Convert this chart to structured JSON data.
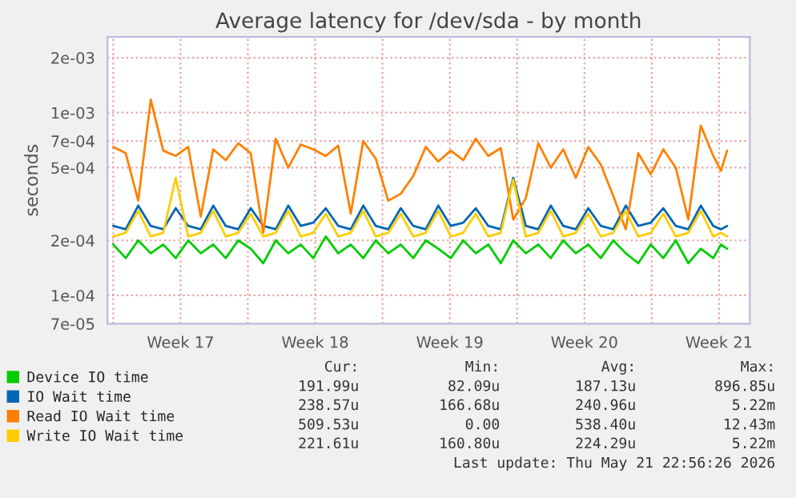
{
  "chart_data": {
    "type": "line",
    "title": "Average latency for /dev/sda - by month",
    "ylabel": "seconds",
    "x": [
      "2026-04-20T00:00",
      "2026-04-20T15:36",
      "2026-04-21T07:12",
      "2026-04-21T22:48",
      "2026-04-22T14:24",
      "2026-04-23T06:00",
      "2026-04-23T21:36",
      "2026-04-24T13:12",
      "2026-04-25T04:48",
      "2026-04-25T20:24",
      "2026-04-26T12:00",
      "2026-04-27T03:36",
      "2026-04-27T19:12",
      "2026-04-28T10:48",
      "2026-04-29T02:24",
      "2026-04-29T18:00",
      "2026-04-30T09:36",
      "2026-05-01T01:12",
      "2026-05-01T16:48",
      "2026-05-02T08:24",
      "2026-05-03T00:00",
      "2026-05-03T15:36",
      "2026-05-04T07:12",
      "2026-05-04T22:48",
      "2026-05-05T14:24",
      "2026-05-06T06:00",
      "2026-05-06T21:36",
      "2026-05-07T13:12",
      "2026-05-08T04:48",
      "2026-05-08T20:24",
      "2026-05-09T12:00",
      "2026-05-10T03:36",
      "2026-05-10T19:12",
      "2026-05-11T10:48",
      "2026-05-12T02:24",
      "2026-05-12T18:00",
      "2026-05-13T09:36",
      "2026-05-14T01:12",
      "2026-05-14T16:48",
      "2026-05-15T08:24",
      "2026-05-16T00:00",
      "2026-05-16T15:36",
      "2026-05-17T07:12",
      "2026-05-17T22:48",
      "2026-05-18T14:24",
      "2026-05-19T06:00",
      "2026-05-19T21:36",
      "2026-05-20T13:12",
      "2026-05-21T04:48",
      "2026-05-21T14:24",
      "2026-05-21T22:00"
    ],
    "series": [
      {
        "name": "Device IO time",
        "color": "#00cc00",
        "values": [
          0.00019,
          0.00016,
          0.0002,
          0.00017,
          0.00019,
          0.00016,
          0.0002,
          0.00017,
          0.00019,
          0.00016,
          0.0002,
          0.00018,
          0.00015,
          0.0002,
          0.00017,
          0.00019,
          0.00016,
          0.00021,
          0.00017,
          0.00019,
          0.00016,
          0.0002,
          0.00017,
          0.00019,
          0.00016,
          0.0002,
          0.00018,
          0.00016,
          0.0002,
          0.00017,
          0.00019,
          0.00015,
          0.0002,
          0.00017,
          0.00019,
          0.00016,
          0.0002,
          0.00017,
          0.00019,
          0.00016,
          0.0002,
          0.00017,
          0.00015,
          0.00019,
          0.00016,
          0.0002,
          0.00015,
          0.00018,
          0.00016,
          0.00019,
          0.00018
        ]
      },
      {
        "name": "IO Wait time",
        "color": "#0066b3",
        "values": [
          0.00024,
          0.00023,
          0.00031,
          0.00024,
          0.00023,
          0.0003,
          0.00024,
          0.00023,
          0.00031,
          0.00024,
          0.00023,
          0.0003,
          0.00024,
          0.00023,
          0.00031,
          0.00024,
          0.00025,
          0.0003,
          0.00024,
          0.00023,
          0.00031,
          0.00024,
          0.00023,
          0.0003,
          0.00024,
          0.00023,
          0.00031,
          0.00024,
          0.00025,
          0.0003,
          0.00024,
          0.00023,
          0.00044,
          0.00024,
          0.00023,
          0.00031,
          0.00024,
          0.00023,
          0.0003,
          0.00024,
          0.00023,
          0.00031,
          0.00024,
          0.00025,
          0.0003,
          0.00024,
          0.00023,
          0.00031,
          0.00024,
          0.00023,
          0.00024
        ]
      },
      {
        "name": "Read IO Wait time",
        "color": "#ff8000",
        "values": [
          0.00065,
          0.0006,
          0.00033,
          0.00118,
          0.00062,
          0.00058,
          0.00065,
          0.00027,
          0.00063,
          0.00055,
          0.00068,
          0.0006,
          0.00022,
          0.00072,
          0.0005,
          0.00067,
          0.00063,
          0.00058,
          0.00066,
          0.00028,
          0.0007,
          0.00056,
          0.00033,
          0.00036,
          0.00045,
          0.00065,
          0.00054,
          0.00062,
          0.00055,
          0.00072,
          0.00058,
          0.00064,
          0.00026,
          0.00034,
          0.00068,
          0.0005,
          0.00063,
          0.00044,
          0.00065,
          0.00052,
          0.00035,
          0.00023,
          0.0006,
          0.00046,
          0.00063,
          0.0005,
          0.00026,
          0.00085,
          0.00058,
          0.00048,
          0.00062
        ]
      },
      {
        "name": "Write IO Wait time",
        "color": "#ffcc00",
        "values": [
          0.00021,
          0.00022,
          0.00029,
          0.00021,
          0.00022,
          0.00044,
          0.00021,
          0.00022,
          0.00029,
          0.00021,
          0.00022,
          0.00028,
          0.00021,
          0.00022,
          0.00029,
          0.00021,
          0.00022,
          0.00028,
          0.00021,
          0.00022,
          0.00029,
          0.00021,
          0.00022,
          0.00028,
          0.00021,
          0.00022,
          0.00029,
          0.00021,
          0.00022,
          0.00028,
          0.00021,
          0.00022,
          0.00043,
          0.00021,
          0.00022,
          0.00029,
          0.00021,
          0.00022,
          0.00028,
          0.00021,
          0.00022,
          0.00029,
          0.00021,
          0.00022,
          0.00028,
          0.00021,
          0.00022,
          0.00029,
          0.00021,
          0.00022,
          0.00021
        ]
      }
    ],
    "xlim": [
      "2026-04-19T16:48",
      "2026-05-23T02:24"
    ],
    "xticks": [
      {
        "value": "2026-04-20",
        "label": null
      },
      {
        "value": "2026-04-23T12:00",
        "label": "Week 17"
      },
      {
        "value": "2026-04-27",
        "label": null
      },
      {
        "value": "2026-04-30T12:00",
        "label": "Week 18"
      },
      {
        "value": "2026-05-04",
        "label": null
      },
      {
        "value": "2026-05-07T12:00",
        "label": "Week 19"
      },
      {
        "value": "2026-05-11",
        "label": null
      },
      {
        "value": "2026-05-14T12:00",
        "label": "Week 20"
      },
      {
        "value": "2026-05-18",
        "label": null
      },
      {
        "value": "2026-05-21T12:00",
        "label": "Week 21"
      }
    ],
    "log": true,
    "ylim": [
      7e-05,
      0.0026
    ],
    "yticks": [
      {
        "value": 7e-05,
        "label": "7e-05"
      },
      {
        "value": 0.0001,
        "label": "1e-04"
      },
      {
        "value": 0.0002,
        "label": "2e-04"
      },
      {
        "value": 0.0005,
        "label": "5e-04"
      },
      {
        "value": 0.0007,
        "label": "7e-04"
      },
      {
        "value": 0.001,
        "label": "1e-03"
      },
      {
        "value": 0.002,
        "label": "2e-03"
      }
    ],
    "grid": true,
    "legend": "bottom",
    "annotations": [
      "Cur:",
      "Min:",
      "Avg:",
      "Max:",
      "191.99u",
      "82.09u",
      "187.13u",
      "896.85u",
      "238.57u",
      "166.68u",
      "240.96u",
      "5.22m",
      "509.53u",
      "0.00",
      "538.40u",
      "12.43m",
      "221.61u",
      "160.80u",
      "224.29u",
      "5.22m",
      "Last update: Thu May 21 22:56:26 2026"
    ]
  }
}
